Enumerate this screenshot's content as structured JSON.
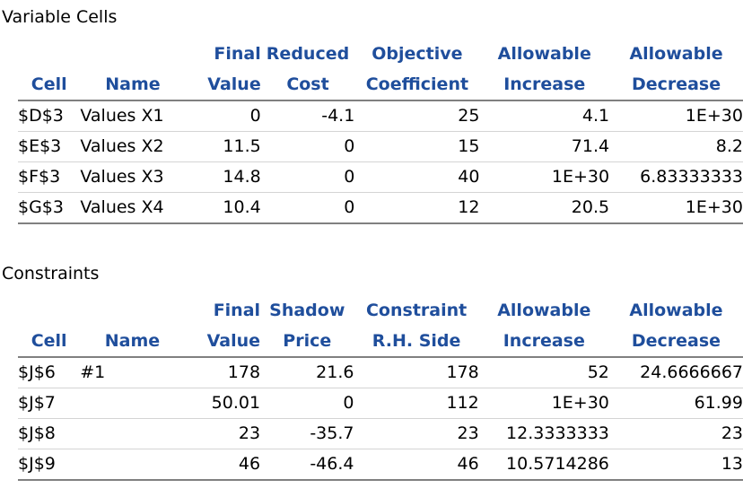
{
  "variable_cells": {
    "title": "Variable Cells",
    "headers_top": [
      "",
      "",
      "Final",
      "Reduced",
      "Objective",
      "Allowable",
      "Allowable"
    ],
    "headers_bottom": [
      "Cell",
      "Name",
      "Value",
      "Cost",
      "Coefficient",
      "Increase",
      "Decrease"
    ],
    "rows": [
      [
        "$D$3",
        "Values X1",
        "0",
        "-4.1",
        "25",
        "4.1",
        "1E+30"
      ],
      [
        "$E$3",
        "Values X2",
        "11.5",
        "0",
        "15",
        "71.4",
        "8.2"
      ],
      [
        "$F$3",
        "Values X3",
        "14.8",
        "0",
        "40",
        "1E+30",
        "6.83333333"
      ],
      [
        "$G$3",
        "Values X4",
        "10.4",
        "0",
        "12",
        "20.5",
        "1E+30"
      ]
    ]
  },
  "constraints": {
    "title": "Constraints",
    "headers_top": [
      "",
      "",
      "Final",
      "Shadow",
      "Constraint",
      "Allowable",
      "Allowable"
    ],
    "headers_bottom": [
      "Cell",
      "Name",
      "Value",
      "Price",
      "R.H. Side",
      "Increase",
      "Decrease"
    ],
    "rows": [
      [
        "$J$6",
        "#1",
        "178",
        "21.6",
        "178",
        "52",
        "24.6666667"
      ],
      [
        "$J$7",
        "",
        "50.01",
        "0",
        "112",
        "1E+30",
        "61.99"
      ],
      [
        "$J$8",
        "",
        "23",
        "-35.7",
        "23",
        "12.3333333",
        "23"
      ],
      [
        "$J$9",
        "",
        "46",
        "-46.4",
        "46",
        "10.5714286",
        "13"
      ]
    ]
  }
}
